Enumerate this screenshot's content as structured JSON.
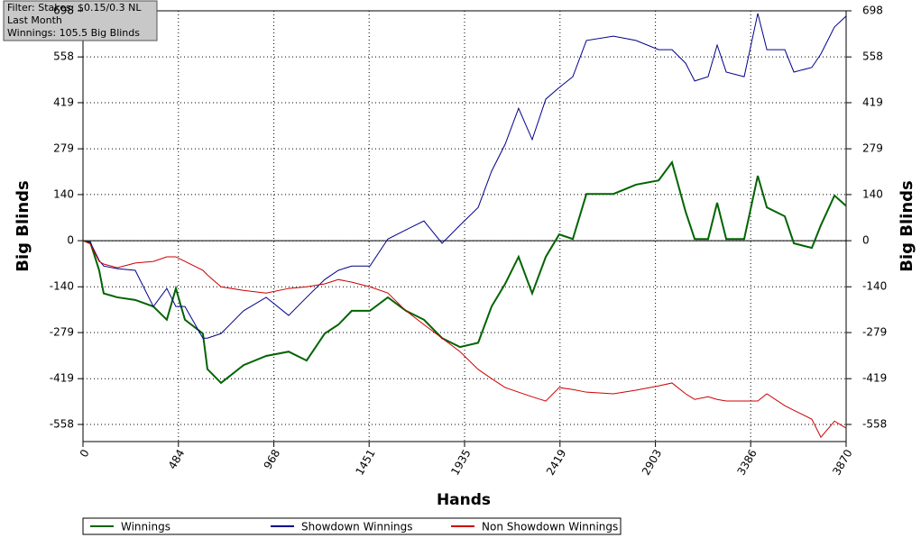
{
  "chart_data": {
    "type": "line",
    "annotations": [
      "Filter: Stakes: $0.15/0.3 NL",
      "Last Month",
      "Winnings: 105.5 Big Blinds"
    ],
    "xlabel": "Hands",
    "ylabel": "Big Blinds",
    "y2label": "Big Blinds",
    "xlim": [
      0,
      3870
    ],
    "ylim": [
      -610,
      698
    ],
    "y2lim": [
      -610,
      698
    ],
    "xticks": [
      0,
      484,
      968,
      1451,
      1935,
      2419,
      2903,
      3386,
      3870
    ],
    "yticks": [
      -558,
      -419,
      -279,
      -140,
      0,
      140,
      279,
      419,
      558,
      698
    ],
    "y2ticks": [
      -558,
      -419,
      -279,
      -140,
      0,
      140,
      279,
      419,
      558,
      698
    ],
    "grid": true,
    "zero_line": true,
    "legend": "bottom",
    "x": [
      0,
      37,
      82,
      105,
      174,
      265,
      357,
      425,
      471,
      517,
      608,
      631,
      700,
      814,
      929,
      1043,
      1134,
      1226,
      1295,
      1363,
      1455,
      1546,
      1638,
      1729,
      1821,
      1912,
      2004,
      2072,
      2141,
      2209,
      2278,
      2347,
      2415,
      2484,
      2553,
      2690,
      2804,
      2919,
      2987,
      3056,
      3102,
      3170,
      3216,
      3262,
      3353,
      3422,
      3468,
      3559,
      3605,
      3696,
      3742,
      3811,
      3870
    ],
    "series": [
      {
        "name": "Winnings",
        "color": "#006400",
        "width": 2,
        "values": [
          0,
          -5,
          -90,
          -160,
          -172,
          -180,
          -200,
          -240,
          -145,
          -240,
          -282,
          -390,
          -432,
          -378,
          -350,
          -337,
          -364,
          -282,
          -255,
          -213,
          -213,
          -172,
          -213,
          -240,
          -296,
          -323,
          -310,
          -200,
          -131,
          -49,
          -160,
          -49,
          19,
          5,
          142,
          142,
          170,
          183,
          238,
          88,
          5,
          5,
          115,
          5,
          5,
          197,
          101,
          74,
          -8,
          -22,
          47,
          137,
          105.5
        ]
      },
      {
        "name": "Showdown Winnings",
        "color": "#00008b",
        "width": 1,
        "values": [
          0,
          -5,
          -60,
          -77,
          -85,
          -90,
          -200,
          -145,
          -200,
          -200,
          -296,
          -296,
          -282,
          -213,
          -172,
          -227,
          -172,
          -118,
          -90,
          -77,
          -77,
          5,
          33,
          60,
          -8,
          47,
          101,
          211,
          293,
          402,
          307,
          430,
          465,
          498,
          608,
          621,
          608,
          580,
          580,
          539,
          485,
          498,
          594,
          512,
          498,
          690,
          580,
          580,
          512,
          526,
          567,
          649,
          682
        ]
      },
      {
        "name": "Non Showdown Winnings",
        "color": "#cc0000",
        "width": 1,
        "values": [
          0,
          -10,
          -63,
          -71,
          -82,
          -68,
          -63,
          -49,
          -49,
          -63,
          -90,
          -104,
          -140,
          -151,
          -159,
          -145,
          -140,
          -131,
          -118,
          -126,
          -140,
          -159,
          -213,
          -255,
          -296,
          -337,
          -391,
          -419,
          -446,
          -460,
          -474,
          -487,
          -446,
          -452,
          -460,
          -465,
          -454,
          -441,
          -432,
          -465,
          -482,
          -474,
          -482,
          -487,
          -487,
          -487,
          -465,
          -501,
          -515,
          -542,
          -597,
          -548,
          -569
        ]
      }
    ]
  }
}
